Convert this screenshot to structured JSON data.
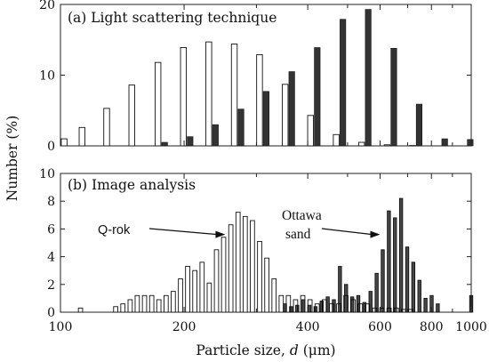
{
  "chart_data": [
    {
      "id": "a",
      "type": "bar",
      "title": "(a) Light scattering technique",
      "ylim": [
        0,
        20
      ],
      "yticks": [
        0,
        10,
        20
      ],
      "xscale": "log",
      "xlim": [
        100,
        1000
      ],
      "series": [
        {
          "style": "open",
          "x": [
            104,
            115,
            132,
            152,
            176,
            203,
            234,
            270,
            311,
            359,
            414,
            478,
            551,
            636,
            733
          ],
          "values": [
            1.0,
            2.6,
            5.3,
            8.6,
            11.8,
            13.9,
            14.7,
            14.4,
            12.9,
            8.7,
            4.3,
            1.6,
            0.5,
            0.15,
            0.05
          ]
        },
        {
          "style": "filled",
          "x": [
            176,
            203,
            234,
            270,
            311,
            359,
            414,
            478,
            551,
            636,
            733,
            846,
            976
          ],
          "values": [
            0.5,
            1.3,
            3.0,
            5.2,
            7.7,
            10.5,
            13.9,
            17.9,
            19.3,
            13.8,
            5.9,
            1.0,
            0.9
          ]
        }
      ]
    },
    {
      "id": "b",
      "type": "bar",
      "title": "(b) Image analysis",
      "xlabel_prefix": "Particle size, ",
      "xlabel_var": "d",
      "xlabel_unit": " (μm)",
      "ylabel": "Number (%)",
      "ylim": [
        0,
        10
      ],
      "yticks": [
        0,
        2,
        4,
        6,
        8,
        10
      ],
      "xscale": "log",
      "xlim": [
        100,
        1000
      ],
      "xticks": [
        100,
        200,
        300,
        400,
        500,
        600,
        700,
        800,
        900,
        1000
      ],
      "xtick_labels": [
        "100",
        "200",
        "",
        "400",
        "",
        "600",
        "",
        "800",
        "",
        "1000"
      ],
      "annotations": [
        {
          "text": "Q-rok",
          "target_x": 252,
          "target_y": 5.6
        },
        {
          "text": "Ottawa",
          "target_x": 600,
          "target_y": 5.6
        },
        {
          "text": "sand"
        }
      ],
      "series": [
        {
          "name": "Q-rok",
          "style": "open",
          "bin_width_log": 0.0103,
          "x": [
            111.9,
            136.3,
            141.9,
            147.8,
            153.8,
            160.2,
            166.8,
            173.6,
            180.8,
            188.2,
            196,
            204,
            212.4,
            221.2,
            230.3,
            239.8,
            249.6,
            259.9,
            270.6,
            281.7,
            293.3,
            305.4,
            318,
            331.1,
            344.7,
            358.8,
            373.6,
            389,
            405,
            421.6,
            439,
            457,
            475.8,
            495.4,
            515.8,
            537.1,
            559.2,
            582.2,
            606.1,
            631,
            657,
            684,
            712.2
          ],
          "values": [
            0.3,
            0.4,
            0.6,
            0.9,
            1.2,
            1.2,
            1.2,
            0.9,
            1.2,
            1.5,
            2.4,
            3.3,
            3.0,
            3.6,
            2.1,
            4.5,
            5.4,
            6.3,
            7.2,
            6.9,
            6.6,
            5.1,
            3.9,
            2.4,
            1.2,
            1.2,
            0.9,
            1.2,
            0.9,
            0.6,
            0.9,
            0.6,
            0.6,
            1.2,
            0.9,
            0.6,
            0.6,
            0.3,
            0.3,
            0.3,
            0.3,
            0.2,
            0.2
          ]
        },
        {
          "name": "Ottawa sand",
          "style": "filled",
          "bin_width_log": 0.0075,
          "x": [
            352,
            364.3,
            377,
            390.1,
            403.7,
            417.8,
            432.4,
            447.4,
            463,
            479.1,
            495.8,
            513.1,
            531,
            549.5,
            568.7,
            588.5,
            609,
            630.3,
            652.2,
            674.9,
            698.5,
            722.8,
            748,
            774,
            801,
            829,
            1000
          ],
          "values": [
            0.6,
            0.4,
            0.5,
            0.9,
            0.5,
            0.4,
            0.8,
            1.1,
            0.9,
            3.3,
            2.0,
            1.1,
            1.2,
            0.7,
            1.5,
            2.8,
            4.5,
            7.3,
            6.8,
            8.2,
            4.7,
            3.6,
            2.3,
            1.0,
            1.2,
            0.6,
            1.2
          ]
        }
      ]
    }
  ]
}
